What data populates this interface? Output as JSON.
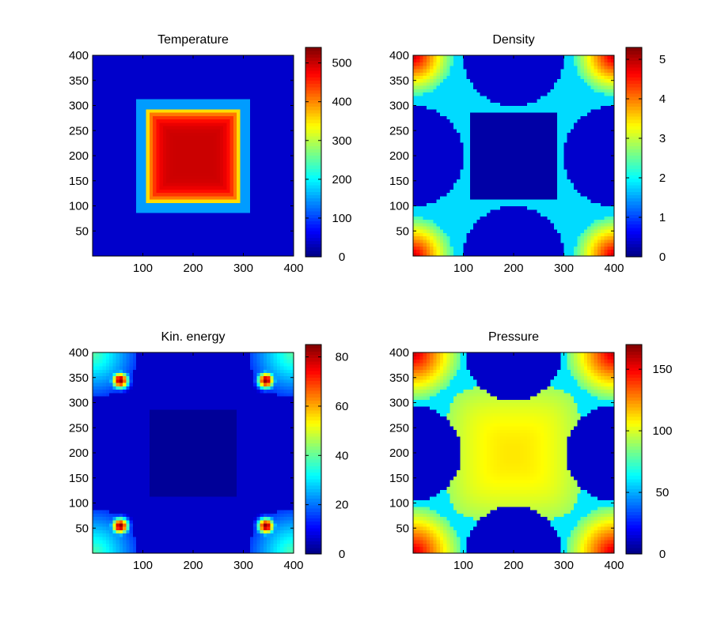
{
  "chart_data": [
    {
      "type": "heatmap",
      "title": "Temperature",
      "xlabel": "",
      "ylabel": "",
      "xlim": [
        0,
        400
      ],
      "ylim": [
        0,
        400
      ],
      "xticks": [
        "100",
        "200",
        "300",
        "400"
      ],
      "yticks": [
        "50",
        "100",
        "150",
        "200",
        "250",
        "300",
        "350",
        "400"
      ],
      "colorbar": {
        "range": [
          0,
          540
        ],
        "ticks": [
          "0",
          "100",
          "200",
          "300",
          "400",
          "500"
        ],
        "tick_values": [
          0,
          100,
          200,
          300,
          400,
          500
        ]
      },
      "field": {
        "background": 40,
        "features": [
          {
            "shape": "square",
            "center": [
              200,
              200
            ],
            "half_width": 95,
            "value": 500,
            "edge_value": 300
          },
          {
            "shape": "square_ring",
            "center": [
              200,
              200
            ],
            "half_width": 105,
            "value": 150
          }
        ]
      }
    },
    {
      "type": "heatmap",
      "title": "Density",
      "xlabel": "",
      "ylabel": "",
      "xlim": [
        0,
        400
      ],
      "ylim": [
        0,
        400
      ],
      "xticks": [
        "100",
        "200",
        "300",
        "400"
      ],
      "yticks": [
        "50",
        "100",
        "150",
        "200",
        "250",
        "300",
        "350",
        "400"
      ],
      "colorbar": {
        "range": [
          0,
          5.3
        ],
        "ticks": [
          "0",
          "1",
          "2",
          "3",
          "4",
          "5"
        ],
        "tick_values": [
          0,
          1,
          2,
          3,
          4,
          5
        ]
      },
      "field": {
        "background": 1.8,
        "features": [
          {
            "shape": "square",
            "center": [
              200,
              200
            ],
            "half_width": 88,
            "value": 0.2
          },
          {
            "shape": "corner_blob",
            "centers": [
              [
                0,
                0
              ],
              [
                400,
                0
              ],
              [
                0,
                400
              ],
              [
                400,
                400
              ]
            ],
            "radius": 80,
            "peak": 5.0,
            "edge_value": 2.3
          },
          {
            "shape": "edge_arc",
            "centers": [
              [
                200,
                0
              ],
              [
                200,
                400
              ],
              [
                0,
                200
              ],
              [
                400,
                200
              ]
            ],
            "radius": 100,
            "value": 0.4
          }
        ]
      }
    },
    {
      "type": "heatmap",
      "title": "Kin. energy",
      "xlabel": "",
      "ylabel": "",
      "xlim": [
        0,
        400
      ],
      "ylim": [
        0,
        400
      ],
      "xticks": [
        "100",
        "200",
        "300",
        "400"
      ],
      "yticks": [
        "50",
        "100",
        "150",
        "200",
        "250",
        "300",
        "350",
        "400"
      ],
      "colorbar": {
        "range": [
          0,
          85
        ],
        "ticks": [
          "0",
          "20",
          "40",
          "60",
          "80"
        ],
        "tick_values": [
          0,
          20,
          40,
          60,
          80
        ]
      },
      "field": {
        "background": 6,
        "features": [
          {
            "shape": "square",
            "center": [
              200,
              200
            ],
            "half_width": 88,
            "value": 2
          },
          {
            "shape": "corner_blob",
            "centers": [
              [
                0,
                0
              ],
              [
                400,
                0
              ],
              [
                0,
                400
              ],
              [
                400,
                400
              ]
            ],
            "radius": 90,
            "peak": 40,
            "edge_value": 15
          },
          {
            "shape": "hotspot",
            "centers": [
              [
                55,
                55
              ],
              [
                345,
                55
              ],
              [
                55,
                345
              ],
              [
                345,
                345
              ]
            ],
            "radius": 12,
            "peak": 85
          }
        ]
      }
    },
    {
      "type": "heatmap",
      "title": "Pressure",
      "xlabel": "",
      "ylabel": "",
      "xlim": [
        0,
        400
      ],
      "ylim": [
        0,
        400
      ],
      "xticks": [
        "100",
        "200",
        "300",
        "400"
      ],
      "yticks": [
        "50",
        "100",
        "150",
        "200",
        "250",
        "300",
        "350",
        "400"
      ],
      "colorbar": {
        "range": [
          0,
          170
        ],
        "ticks": [
          "0",
          "50",
          "100",
          "150"
        ],
        "tick_values": [
          0,
          50,
          100,
          150
        ]
      },
      "field": {
        "background": 60,
        "features": [
          {
            "shape": "rounded_square",
            "center": [
              200,
              200
            ],
            "half_width": 135,
            "center_value": 110,
            "edge_value": 90
          },
          {
            "shape": "corner_blob",
            "centers": [
              [
                0,
                0
              ],
              [
                400,
                0
              ],
              [
                0,
                400
              ],
              [
                400,
                400
              ]
            ],
            "radius": 95,
            "peak": 160,
            "edge_value": 80
          },
          {
            "shape": "edge_arc",
            "centers": [
              [
                200,
                0
              ],
              [
                200,
                400
              ],
              [
                0,
                200
              ],
              [
                400,
                200
              ]
            ],
            "radius": 95,
            "value": 12
          }
        ]
      }
    }
  ]
}
